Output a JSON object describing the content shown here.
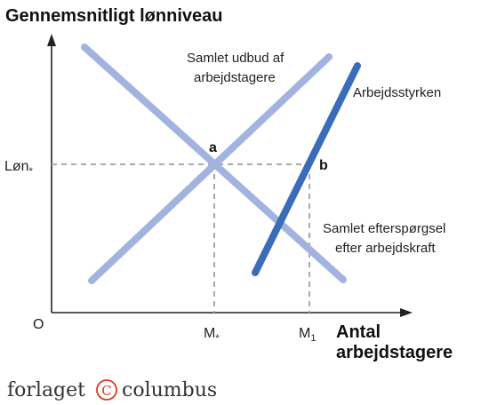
{
  "title": "Gennemsnitligt lønniveau",
  "axes": {
    "y_label": "Gennemsnitligt lønniveau",
    "x_label_line1": "Antal",
    "x_label_line2": "arbejdstagere",
    "origin": "O"
  },
  "ticks": {
    "wage_main": "Løn",
    "wage_sub": "*",
    "m_star_main": "M",
    "m_star_sub": "*",
    "m1_main": "M",
    "m1_sub": "1"
  },
  "curves": {
    "supply_line1": "Samlet udbud af",
    "supply_line2": "arbejdstagere",
    "labor_force": "Arbejdsstyrken",
    "demand_line1": "Samlet efterspørgsel",
    "demand_line2": "efter arbejdskraft"
  },
  "points": {
    "a": "a",
    "b": "b"
  },
  "publisher": {
    "left": "forlaget",
    "mark": "C",
    "right": "columbus"
  },
  "colors": {
    "light_line": "#a3b3df",
    "dark_line": "#3a6cb9",
    "dash": "#aaaaaa",
    "axis": "#222222",
    "logo": "#d9381e"
  }
}
